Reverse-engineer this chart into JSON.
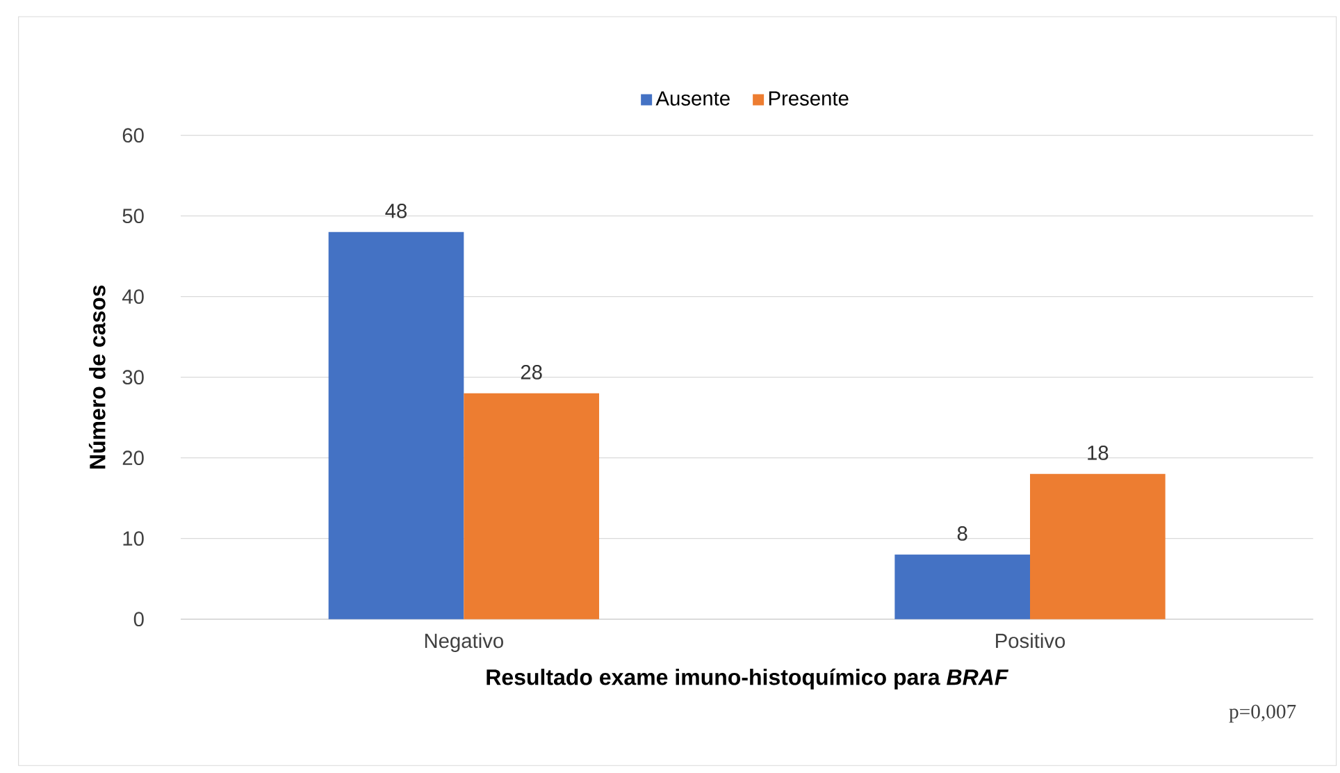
{
  "chart_data": {
    "type": "bar",
    "categories": [
      "Negativo",
      "Positivo"
    ],
    "series": [
      {
        "name": "Ausente",
        "color": "#4472c4",
        "values": [
          48,
          8
        ]
      },
      {
        "name": "Presente",
        "color": "#ed7d31",
        "values": [
          28,
          18
        ]
      }
    ],
    "ylim": [
      0,
      60
    ],
    "yticks": [
      0,
      10,
      20,
      30,
      40,
      50,
      60
    ],
    "xlabel": "Resultado exame imuno-histoquímico para *BRAF*",
    "ylabel": "Número de casos",
    "annotations": [
      "p=0,007"
    ],
    "grid": "y",
    "legend": "top",
    "data_labels": true
  }
}
